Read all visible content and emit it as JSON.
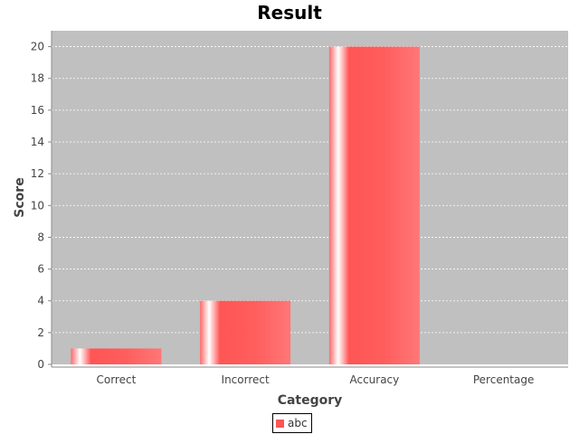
{
  "chart_data": {
    "type": "bar",
    "title": "Result",
    "xlabel": "Category",
    "ylabel": "Score",
    "categories": [
      "Correct",
      "Incorrect",
      "Accuracy",
      "Percentage"
    ],
    "series": [
      {
        "name": "abc",
        "values": [
          1,
          4,
          20,
          0
        ]
      }
    ],
    "ylim": [
      0,
      21
    ],
    "yticks": [
      0,
      2,
      4,
      6,
      8,
      10,
      12,
      14,
      16,
      18,
      20
    ],
    "grid": true,
    "legend": "bottom-center",
    "colors": {
      "plot_background": "#c0c0c0",
      "bar": "#ff5555",
      "gridline": "#ffffff"
    }
  }
}
